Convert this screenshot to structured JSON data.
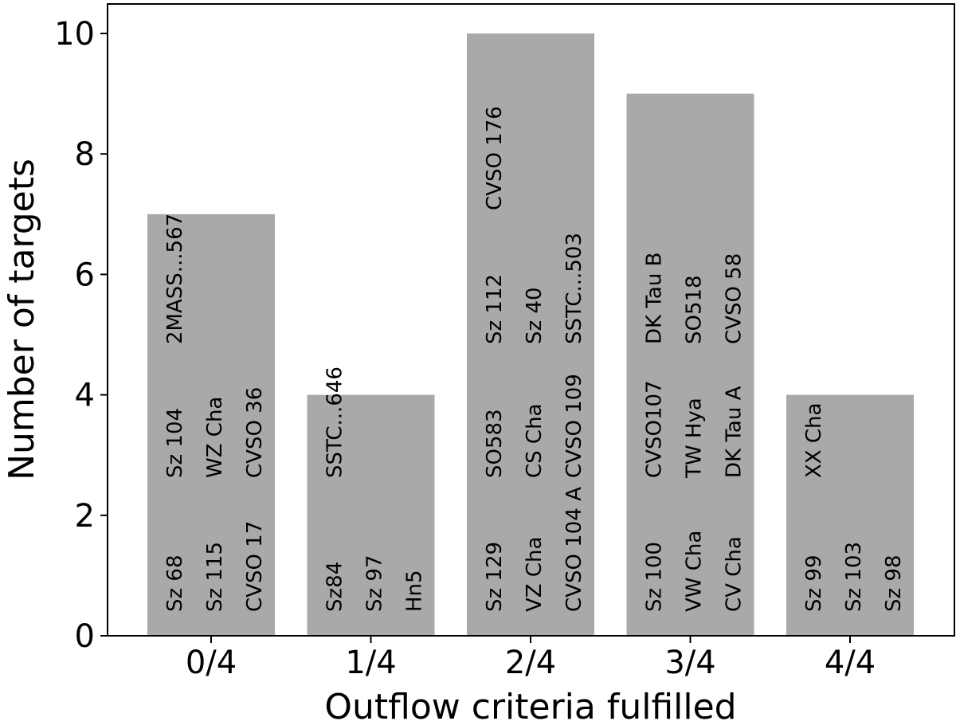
{
  "chart_data": {
    "type": "bar",
    "xlabel": "Outflow criteria fulfilled",
    "ylabel": "Number of targets",
    "ylim": [
      0,
      10.5
    ],
    "yticks": [
      0,
      2,
      4,
      6,
      8,
      10
    ],
    "grid": false,
    "bar_color": "#a9a9a9",
    "categories": [
      "0/4",
      "1/4",
      "2/4",
      "3/4",
      "4/4"
    ],
    "values": [
      7,
      4,
      10,
      9,
      4
    ],
    "targets": [
      [
        "Sz 68",
        "Sz 115",
        "CVSO 17",
        "Sz 104",
        "WZ Cha",
        "CVSO 36",
        "2MASS...567"
      ],
      [
        "Sz84",
        "Sz 97",
        "Hn5",
        "SSTC...646"
      ],
      [
        "Sz 129",
        "VZ Cha",
        "CVSO 104 A",
        "SO583",
        "CS Cha",
        "CVSO 109",
        "Sz 112",
        "Sz 40",
        "SSTC...503",
        "CVSO 176"
      ],
      [
        "Sz 100",
        "VW Cha",
        "CV Cha",
        "CVSO107",
        "TW Hya",
        "DK Tau A",
        "DK Tau B",
        "SO518",
        "CVSO 58"
      ],
      [
        "Sz 99",
        "Sz 103",
        "Sz 98",
        "XX Cha"
      ]
    ]
  }
}
